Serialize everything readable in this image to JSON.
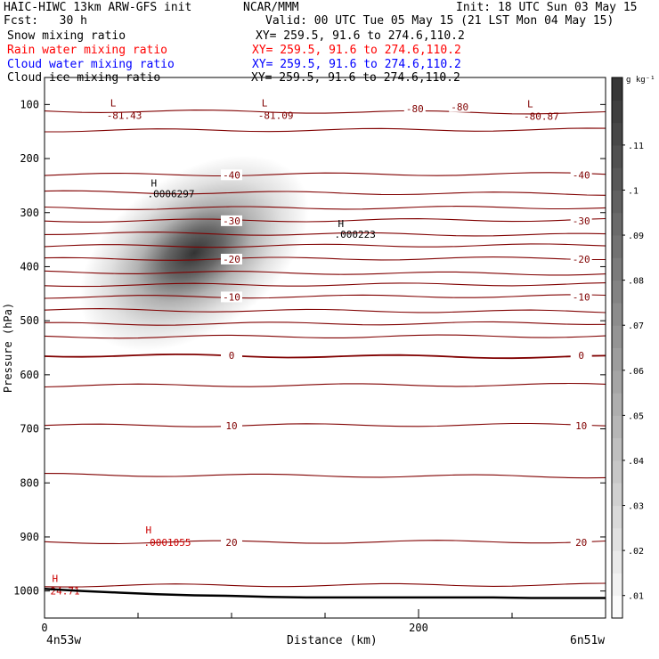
{
  "header": {
    "model": "HAIC-HIWC 13km ARW-GFS init",
    "center": "NCAR/MMM",
    "init": "Init: 18 UTC Sun 03 May 15",
    "fcst": "Fcst:   30 h",
    "valid": "Valid: 00 UTC Tue 05 May 15 (21 LST Mon 04 May 15)",
    "fields": [
      {
        "name": "Snow mixing ratio",
        "xy": "XY= 259.5, 91.6 to 274.6,110.2",
        "color": "#000000"
      },
      {
        "name": "Rain water mixing ratio",
        "xy": "XY= 259.5, 91.6 to 274.6,110.2",
        "color": "#ff0000"
      },
      {
        "name": "Cloud water mixing ratio",
        "xy": "XY= 259.5, 91.6 to 274.6,110.2",
        "color": "#0000ff"
      },
      {
        "name": "Cloud ice mixing ratio",
        "xy": "XY= 259.5, 91.6 to 274.6,110.2",
        "color": "#000000"
      }
    ]
  },
  "chart_data": {
    "type": "heatmap",
    "xlabel": "Distance (km)",
    "ylabel": "Pressure (hPa)",
    "xlim": [
      0,
      300
    ],
    "ylim": [
      1050,
      50
    ],
    "x_ticks": [
      0,
      200
    ],
    "x_minor_ticks": [
      50,
      100,
      150,
      250,
      300
    ],
    "y_ticks": [
      100,
      200,
      300,
      400,
      500,
      600,
      700,
      800,
      900,
      1000
    ],
    "endpoints": {
      "left": "4n53w",
      "right": "6n51w"
    },
    "colorbar": {
      "unit": "g kg⁻¹",
      "min": 0.005,
      "max": 0.125,
      "tick_labels": [
        ".01",
        ".02",
        ".03",
        ".04",
        ".05",
        ".06",
        ".07",
        ".08",
        ".09",
        ".1",
        ".11"
      ],
      "tick_values": [
        0.01,
        0.02,
        0.03,
        0.04,
        0.05,
        0.06,
        0.07,
        0.08,
        0.09,
        0.1,
        0.11
      ]
    },
    "shaded_field": {
      "center_x_km": 80,
      "center_p_hpa": 375,
      "peak_value": 0.12,
      "spread_x_km": 30,
      "spread_p_hpa": 100
    },
    "temperature_contours": {
      "color": "#800000",
      "levels": [
        {
          "p": 112,
          "label": null
        },
        {
          "p": 148,
          "label": null
        },
        {
          "p": 230,
          "label": "-40"
        },
        {
          "p": 262,
          "label": null
        },
        {
          "p": 292,
          "label": null
        },
        {
          "p": 315,
          "label": "-30"
        },
        {
          "p": 338,
          "label": null
        },
        {
          "p": 362,
          "label": null
        },
        {
          "p": 386,
          "label": "-20"
        },
        {
          "p": 410,
          "label": null
        },
        {
          "p": 434,
          "label": null
        },
        {
          "p": 456,
          "label": "-10"
        },
        {
          "p": 480,
          "label": null
        },
        {
          "p": 506,
          "label": null
        },
        {
          "p": 530,
          "label": null
        },
        {
          "p": 564,
          "label": "0"
        },
        {
          "p": 620,
          "label": null
        },
        {
          "p": 694,
          "label": "10"
        },
        {
          "p": 785,
          "label": null
        },
        {
          "p": 910,
          "label": "20"
        },
        {
          "p": 990,
          "label": null
        }
      ],
      "top_minus80_labels": [
        "-80",
        "-80"
      ],
      "lows": [
        {
          "x_km": 37,
          "p": 110,
          "letter": "L",
          "value": "-81.43"
        },
        {
          "x_km": 118,
          "p": 110,
          "letter": "L",
          "value": "-81.09"
        },
        {
          "x_km": 260,
          "p": 112,
          "letter": "L",
          "value": "-80.87"
        }
      ],
      "highs_red": [
        {
          "x_km": 5,
          "p": 990,
          "letter": "H",
          "value": "24.71"
        },
        {
          "x_km": 55,
          "p": 900,
          "letter": "H",
          "value": ".0001055"
        }
      ]
    },
    "black_highs": [
      {
        "x_km": 55,
        "p": 265,
        "letter": "H",
        "value": ".0006297"
      },
      {
        "x_km": 155,
        "p": 340,
        "letter": "H",
        "value": ".000223"
      }
    ],
    "terrain_p_hpa": {
      "x_km": [
        0,
        20,
        40,
        60,
        80,
        100,
        120,
        140,
        160,
        180,
        200,
        220,
        240,
        260,
        280,
        300
      ],
      "p": [
        996,
        1000,
        1003,
        1006,
        1008,
        1009,
        1011,
        1012,
        1012,
        1012,
        1012,
        1012,
        1012,
        1013,
        1013,
        1013
      ]
    }
  }
}
